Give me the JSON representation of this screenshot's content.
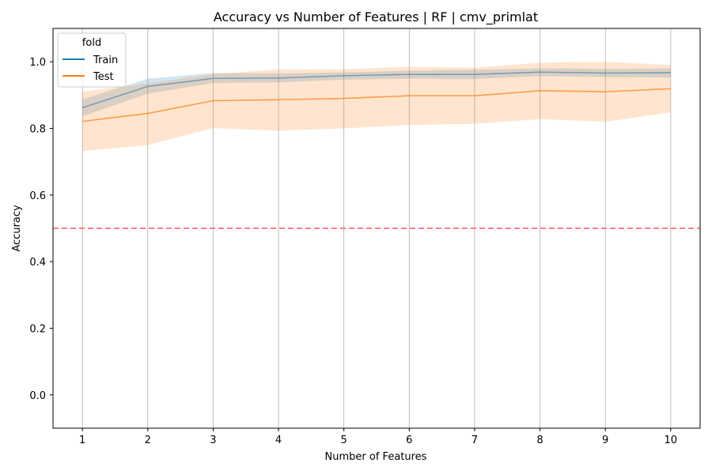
{
  "chart_data": {
    "type": "line",
    "title": "Accuracy vs Number of Features | RF | cmv_primlat",
    "xlabel": "Number of Features",
    "ylabel": "Accuracy",
    "x": [
      1,
      2,
      3,
      4,
      5,
      6,
      7,
      8,
      9,
      10
    ],
    "xlim": [
      0.55,
      10.45
    ],
    "ylim": [
      -0.1,
      1.1
    ],
    "xticks": [
      "1",
      "2",
      "3",
      "4",
      "5",
      "6",
      "7",
      "8",
      "9",
      "10"
    ],
    "yticks": [
      "0.0",
      "0.2",
      "0.4",
      "0.6",
      "0.8",
      "1.0"
    ],
    "grid": "vertical",
    "legend": {
      "title": "fold",
      "placement": "upper-left"
    },
    "series": [
      {
        "name": "Train",
        "color": "#1f77b4",
        "values": [
          0.862,
          0.926,
          0.95,
          0.951,
          0.958,
          0.962,
          0.962,
          0.969,
          0.966,
          0.967
        ],
        "band_low": [
          0.836,
          0.904,
          0.936,
          0.938,
          0.946,
          0.949,
          0.948,
          0.957,
          0.954,
          0.953
        ],
        "band_high": [
          0.887,
          0.949,
          0.966,
          0.965,
          0.968,
          0.973,
          0.976,
          0.98,
          0.979,
          0.98
        ]
      },
      {
        "name": "Test",
        "color": "#ff7f0e",
        "values": [
          0.821,
          0.845,
          0.883,
          0.886,
          0.89,
          0.898,
          0.898,
          0.913,
          0.91,
          0.919
        ],
        "band_low": [
          0.732,
          0.75,
          0.801,
          0.793,
          0.8,
          0.81,
          0.814,
          0.828,
          0.82,
          0.848
        ],
        "band_high": [
          0.91,
          0.935,
          0.963,
          0.977,
          0.978,
          0.985,
          0.982,
          0.997,
          1.0,
          0.99
        ]
      }
    ],
    "reference_line": {
      "y": 0.5,
      "color": "#ff5a5a",
      "style": "dashed"
    }
  }
}
